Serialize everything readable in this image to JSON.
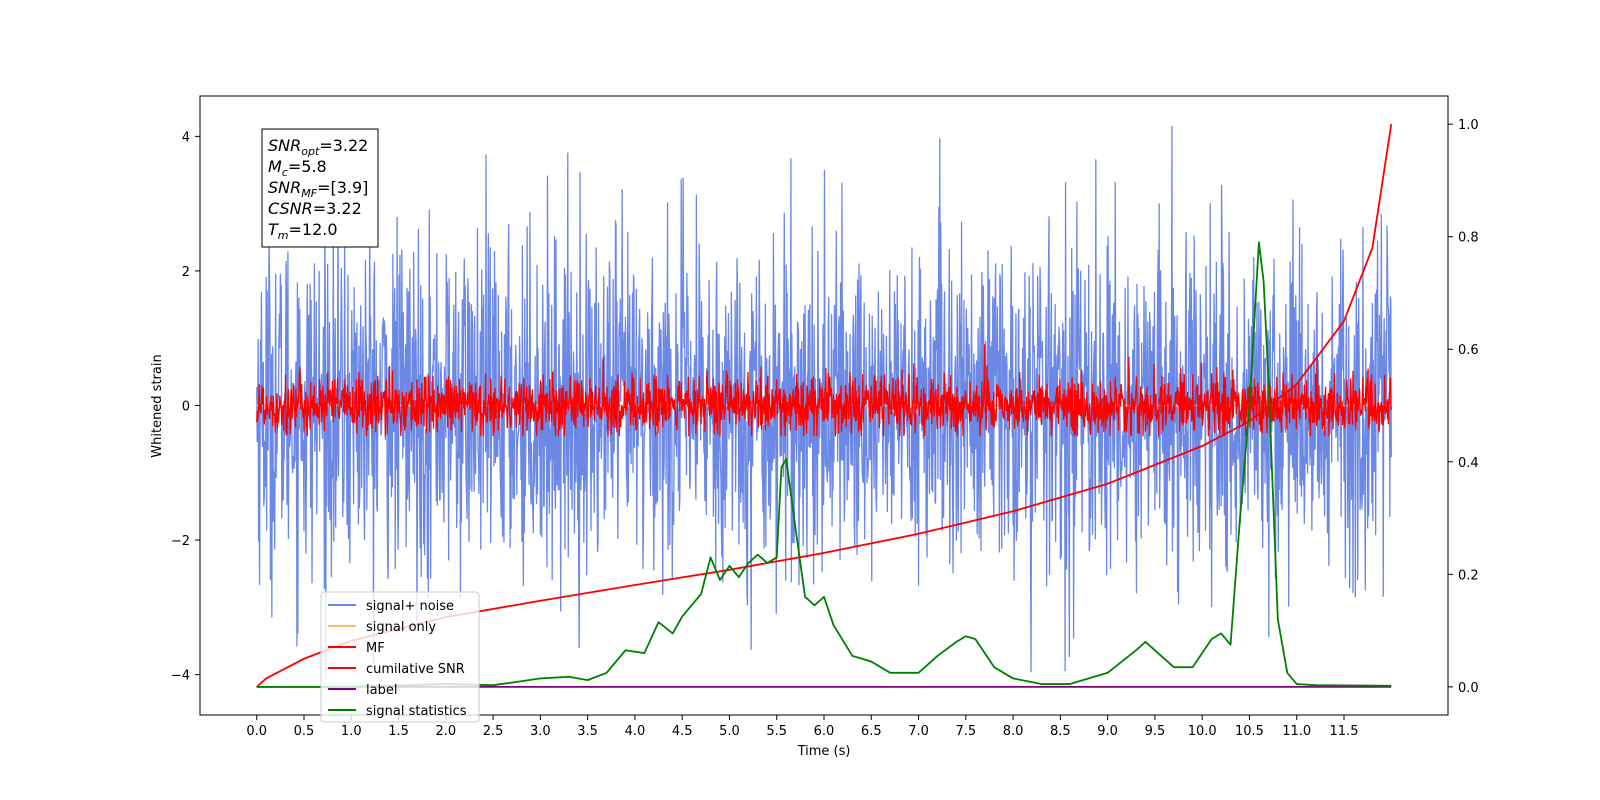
{
  "chart_data": {
    "type": "line",
    "xlabel": "Time (s)",
    "ylabel": "Whitened strain",
    "xlim": [
      -0.6,
      12.6
    ],
    "ylim": [
      -4.6,
      4.6
    ],
    "y2lim": [
      -0.05,
      1.05
    ],
    "x_ticks": [
      0.0,
      0.5,
      1.0,
      1.5,
      2.0,
      2.5,
      3.0,
      3.5,
      4.0,
      4.5,
      5.0,
      5.5,
      6.0,
      6.5,
      7.0,
      7.5,
      8.0,
      8.5,
      9.0,
      9.5,
      10.0,
      10.5,
      11.0,
      11.5
    ],
    "x_tick_labels": [
      "0.0",
      "0.5",
      "1.0",
      "1.5",
      "2.0",
      "2.5",
      "3.0",
      "3.5",
      "4.0",
      "4.5",
      "5.0",
      "5.5",
      "6.0",
      "6.5",
      "7.0",
      "7.5",
      "8.0",
      "8.5",
      "9.0",
      "9.5",
      "10.0",
      "10.5",
      "11.0",
      "11.5"
    ],
    "y_ticks": [
      -4,
      -2,
      0,
      2,
      4
    ],
    "y_tick_labels": [
      "−4",
      "−2",
      "0",
      "2",
      "4"
    ],
    "y2_ticks": [
      0.0,
      0.2,
      0.4,
      0.6,
      0.8,
      1.0
    ],
    "y2_tick_labels": [
      "0.0",
      "0.2",
      "0.4",
      "0.6",
      "0.8",
      "1.0"
    ],
    "grid": false,
    "legend_position": "lower-left",
    "series": [
      {
        "name": "signal+ noise",
        "color": "#6b88e6",
        "axis": "left",
        "style": "noise",
        "x_range": [
          0,
          12
        ],
        "amplitude_sd": 1.25,
        "y_max": 4.15,
        "y_min": -4.05
      },
      {
        "name": "signal only",
        "color": "#f5c16c",
        "axis": "left",
        "style": "flat",
        "x_range": [
          0,
          12
        ],
        "values": [
          0
        ]
      },
      {
        "name": "MF",
        "color": "#ff0000",
        "axis": "left",
        "style": "noise",
        "x_range": [
          0,
          12
        ],
        "amplitude_sd": 0.22,
        "y_max": 1.0,
        "y_min": -0.45
      },
      {
        "name": "cumilative SNR",
        "color": "#ff0000",
        "axis": "right",
        "style": "curve",
        "x": [
          0,
          0.1,
          0.5,
          1,
          2,
          3,
          4,
          5,
          6,
          7,
          8,
          9,
          10,
          10.5,
          11,
          11.5,
          11.8,
          12.0
        ],
        "y": [
          0.0,
          0.015,
          0.05,
          0.082,
          0.124,
          0.153,
          0.181,
          0.208,
          0.238,
          0.272,
          0.312,
          0.361,
          0.428,
          0.472,
          0.538,
          0.65,
          0.78,
          1.0
        ]
      },
      {
        "name": "label",
        "color": "#800080",
        "axis": "right",
        "style": "flat",
        "x_range": [
          0,
          12
        ],
        "values": [
          0.0
        ]
      },
      {
        "name": "signal statistics",
        "color": "#008000",
        "axis": "right",
        "style": "curve",
        "x": [
          0,
          1,
          2,
          2.5,
          2.8,
          3.0,
          3.3,
          3.5,
          3.7,
          3.9,
          4.1,
          4.25,
          4.4,
          4.5,
          4.7,
          4.8,
          4.9,
          5.0,
          5.1,
          5.2,
          5.3,
          5.4,
          5.5,
          5.55,
          5.6,
          5.7,
          5.8,
          5.9,
          6.0,
          6.1,
          6.3,
          6.5,
          6.7,
          7.0,
          7.2,
          7.4,
          7.5,
          7.6,
          7.8,
          8.0,
          8.3,
          8.6,
          9.0,
          9.3,
          9.4,
          9.5,
          9.7,
          9.9,
          10.1,
          10.2,
          10.3,
          10.4,
          10.5,
          10.6,
          10.65,
          10.7,
          10.8,
          10.9,
          11.0,
          11.2,
          12.0
        ],
        "y": [
          0.0,
          0.0,
          0.005,
          0.003,
          0.01,
          0.015,
          0.018,
          0.012,
          0.025,
          0.065,
          0.06,
          0.115,
          0.095,
          0.125,
          0.165,
          0.23,
          0.19,
          0.215,
          0.195,
          0.22,
          0.235,
          0.22,
          0.23,
          0.39,
          0.405,
          0.28,
          0.16,
          0.145,
          0.16,
          0.11,
          0.055,
          0.045,
          0.025,
          0.025,
          0.055,
          0.08,
          0.09,
          0.085,
          0.035,
          0.015,
          0.005,
          0.005,
          0.025,
          0.065,
          0.08,
          0.065,
          0.035,
          0.035,
          0.085,
          0.095,
          0.075,
          0.3,
          0.5,
          0.79,
          0.72,
          0.55,
          0.12,
          0.025,
          0.005,
          0.003,
          0.002
        ]
      }
    ]
  },
  "info_box": {
    "lines": [
      {
        "name": "SNR",
        "sub": "opt",
        "value": "=3.22"
      },
      {
        "name": "M",
        "sub": "c",
        "value": "=5.8"
      },
      {
        "name": "SNR",
        "sub": "MF",
        "value": "=[3.9]"
      },
      {
        "name": "CSNR",
        "sub": "",
        "value": "=3.22"
      },
      {
        "name": "T",
        "sub": "m",
        "value": "=12.0"
      }
    ]
  },
  "legend": {
    "items": [
      {
        "label": "signal+ noise",
        "color": "#6b88e6"
      },
      {
        "label": "signal only",
        "color": "#f5c16c"
      },
      {
        "label": "MF",
        "color": "#ff0000"
      },
      {
        "label": "cumilative SNR",
        "color": "#ff0000"
      },
      {
        "label": "label",
        "color": "#800080"
      },
      {
        "label": "signal statistics",
        "color": "#008000"
      }
    ]
  }
}
